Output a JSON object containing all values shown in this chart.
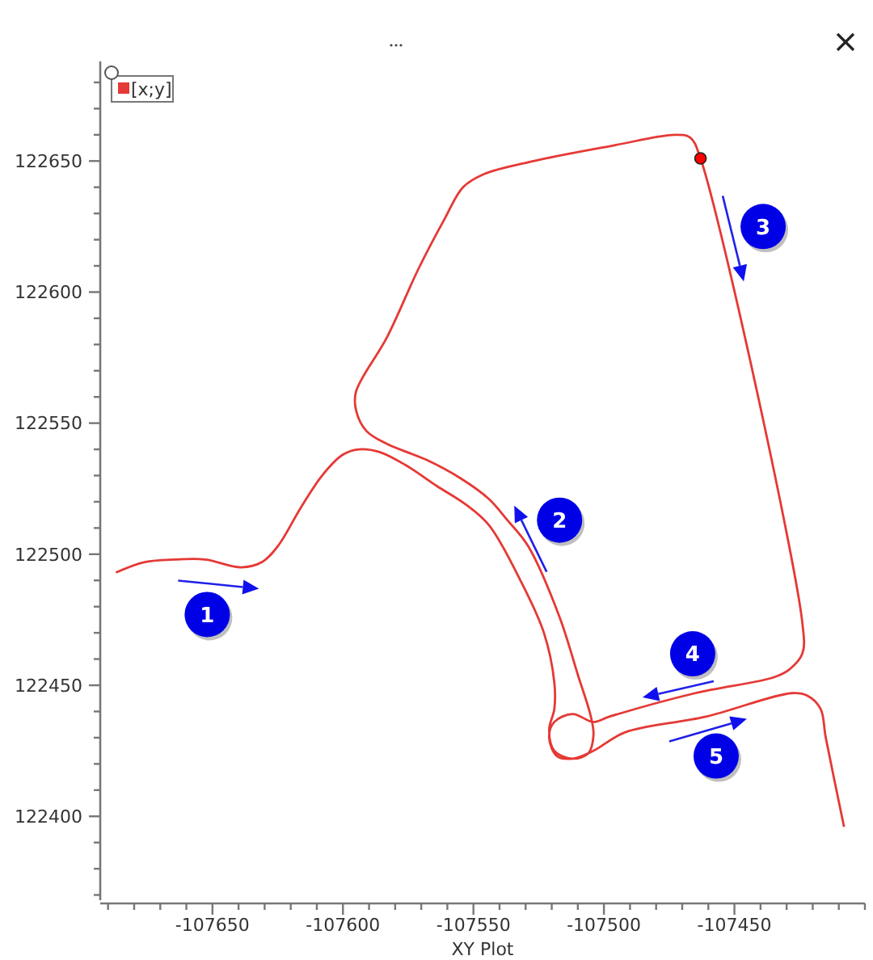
{
  "chart_data": {
    "type": "line",
    "xlabel": "XY Plot",
    "xlim": [
      -107693,
      -107400
    ],
    "ylim": [
      122368,
      122688
    ],
    "xticks": [
      {
        "value": -107690,
        "label": null
      },
      {
        "value": -107680,
        "label": null
      },
      {
        "value": -107670,
        "label": null
      },
      {
        "value": -107660,
        "label": null
      },
      -107650,
      {
        "value": -107640,
        "label": null
      },
      {
        "value": -107630,
        "label": null
      },
      {
        "value": -107620,
        "label": null
      },
      {
        "value": -107610,
        "label": null
      },
      -107600,
      {
        "value": -107590,
        "label": null
      },
      {
        "value": -107580,
        "label": null
      },
      {
        "value": -107570,
        "label": null
      },
      {
        "value": -107560,
        "label": null
      },
      -107550,
      {
        "value": -107540,
        "label": null
      },
      {
        "value": -107530,
        "label": null
      },
      {
        "value": -107520,
        "label": null
      },
      {
        "value": -107510,
        "label": null
      },
      -107500,
      {
        "value": -107490,
        "label": null
      },
      {
        "value": -107480,
        "label": null
      },
      {
        "value": -107470,
        "label": null
      },
      {
        "value": -107460,
        "label": null
      },
      -107450,
      {
        "value": -107440,
        "label": null
      },
      {
        "value": -107430,
        "label": null
      },
      {
        "value": -107420,
        "label": null
      },
      {
        "value": -107410,
        "label": null
      },
      {
        "value": -107400,
        "label": null
      }
    ],
    "yticks": [
      {
        "value": 122370,
        "label": null
      },
      {
        "value": 122380,
        "label": null
      },
      {
        "value": 122390,
        "label": null
      },
      122400,
      {
        "value": 122410,
        "label": null
      },
      {
        "value": 122420,
        "label": null
      },
      {
        "value": 122430,
        "label": null
      },
      {
        "value": 122440,
        "label": null
      },
      122450,
      {
        "value": 122460,
        "label": null
      },
      {
        "value": 122470,
        "label": null
      },
      {
        "value": 122480,
        "label": null
      },
      {
        "value": 122490,
        "label": null
      },
      122500,
      {
        "value": 122510,
        "label": null
      },
      {
        "value": 122520,
        "label": null
      },
      {
        "value": 122530,
        "label": null
      },
      {
        "value": 122540,
        "label": null
      },
      122550,
      {
        "value": 122560,
        "label": null
      },
      {
        "value": 122570,
        "label": null
      },
      {
        "value": 122580,
        "label": null
      },
      {
        "value": 122590,
        "label": null
      },
      122600,
      {
        "value": 122610,
        "label": null
      },
      {
        "value": 122620,
        "label": null
      },
      {
        "value": 122630,
        "label": null
      },
      {
        "value": 122640,
        "label": null
      },
      122650,
      {
        "value": 122660,
        "label": null
      },
      {
        "value": 122670,
        "label": null
      },
      {
        "value": 122680,
        "label": null
      }
    ],
    "legend": "top left",
    "marker": "none",
    "series": [
      {
        "name": "[x;y]",
        "color": "#e53935",
        "x": [
          -107687,
          -107676,
          -107664,
          -107653,
          -107639,
          -107631,
          -107625,
          -107616,
          -107608,
          -107600,
          -107594,
          -107586,
          -107576,
          -107564,
          -107553,
          -107544,
          -107532,
          -107523,
          -107519,
          -107519,
          -107521,
          -107519,
          -107512,
          -107506,
          -107504,
          -107505,
          -107510,
          -107517,
          -107529,
          -107537,
          -107544,
          -107555,
          -107568,
          -107583,
          -107591,
          -107595,
          -107595,
          -107583,
          -107571,
          -107561,
          -107554,
          -107546,
          -107527,
          -107496,
          -107473,
          -107467,
          -107463,
          -107424,
          -107424,
          -107429,
          -107435,
          -107465,
          -107498,
          -107504,
          -107512,
          -107519,
          -107521,
          -107518,
          -107512,
          -107504,
          -107492,
          -107461,
          -107428,
          -107422,
          -107417,
          -107415,
          -107408
        ],
        "values": [
          122493,
          122497,
          122498,
          122498,
          122495,
          122497,
          122503,
          122518,
          122530,
          122538,
          122540,
          122539,
          122534,
          122526,
          122519,
          122511,
          122490,
          122470,
          122451,
          122441,
          122433,
          122425,
          122422,
          122424,
          122431,
          122438,
          122454,
          122476,
          122503,
          122513,
          122521,
          122529,
          122536,
          122542,
          122547,
          122555,
          122562,
          122583,
          122609,
          122628,
          122640,
          122645,
          122650,
          122656,
          122660,
          122659,
          122651,
          122474,
          122462,
          122456,
          122453,
          122447,
          122438,
          122436,
          122439,
          122436,
          122430,
          122423,
          122422,
          122425,
          122432,
          122438,
          122447,
          122446,
          122441,
          122430,
          122396
        ]
      },
      {
        "type": "scatter",
        "color": "#ff0000",
        "marker": "circle",
        "x": [
          -107463
        ],
        "values": [
          122651
        ]
      }
    ],
    "annotations": [
      {
        "text": "1",
        "x": -107652,
        "y": 122477
      },
      {
        "text": "2",
        "x": -107517,
        "y": 122513
      },
      {
        "text": "3",
        "x": -107439,
        "y": 122625
      },
      {
        "text": "4",
        "x": -107466,
        "y": 122462
      },
      {
        "text": "5",
        "x": -107457,
        "y": 122423
      }
    ]
  }
}
